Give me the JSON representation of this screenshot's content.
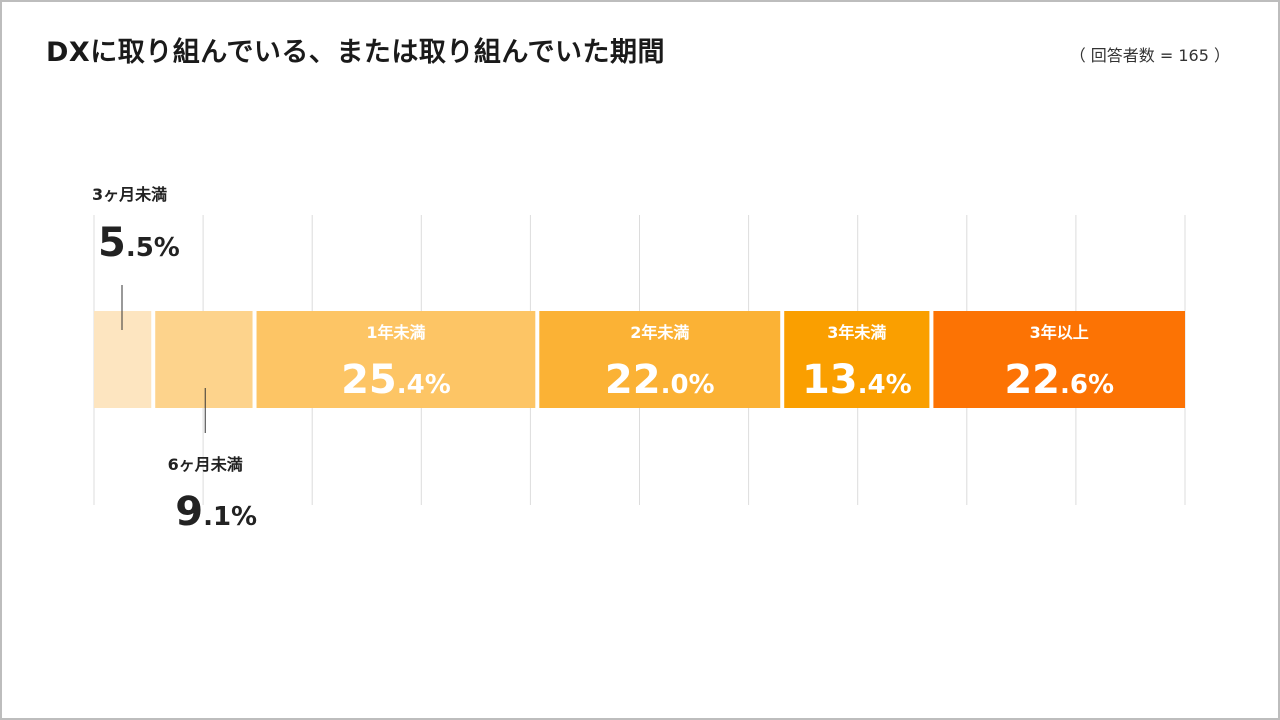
{
  "title": "DXに取り組んでいる、または取り組んでいた期間",
  "sample_note": "（ 回答者数 = 165 ）",
  "chart_data": {
    "type": "bar",
    "orientation": "horizontal-stacked-100",
    "title": "DXに取り組んでいる、または取り組んでいた期間",
    "unit": "%",
    "categories": [
      "3ヶ月未満",
      "6ヶ月未満",
      "1年未満",
      "2年未満",
      "3年未満",
      "3年以上"
    ],
    "values": [
      5.5,
      9.1,
      25.4,
      22.0,
      13.4,
      22.6
    ],
    "colors": [
      "#fde5c0",
      "#fdd38c",
      "#fdc565",
      "#fbb235",
      "#fa9f00",
      "#fc7304"
    ],
    "outside_labels": {
      "3ヶ月未満": "above",
      "6ヶ月未満": "below"
    },
    "grid": true,
    "xlim": [
      0,
      100
    ]
  }
}
